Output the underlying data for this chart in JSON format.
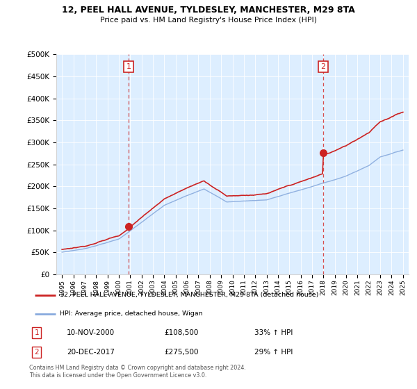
{
  "title": "12, PEEL HALL AVENUE, TYLDESLEY, MANCHESTER, M29 8TA",
  "subtitle": "Price paid vs. HM Land Registry's House Price Index (HPI)",
  "legend_line1": "12, PEEL HALL AVENUE, TYLDESLEY, MANCHESTER, M29 8TA (detached house)",
  "legend_line2": "HPI: Average price, detached house, Wigan",
  "sale1_date": "10-NOV-2000",
  "sale1_price": 108500,
  "sale2_date": "20-DEC-2017",
  "sale2_price": 275500,
  "sale1_pct": "33% ↑ HPI",
  "sale2_pct": "29% ↑ HPI",
  "footer": "Contains HM Land Registry data © Crown copyright and database right 2024.\nThis data is licensed under the Open Government Licence v3.0.",
  "red_color": "#cc2222",
  "blue_color": "#88aadd",
  "sale1_x": 2000.86,
  "sale2_x": 2017.97,
  "ylim_min": 0,
  "ylim_max": 500000,
  "xlim_min": 1994.5,
  "xlim_max": 2025.5,
  "bg_color": "#ddeeff"
}
